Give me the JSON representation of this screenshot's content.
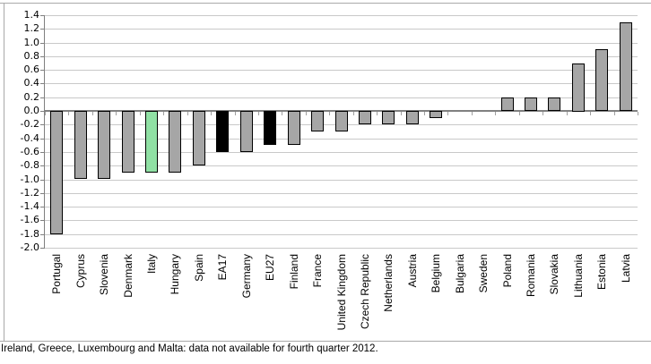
{
  "chart_data": {
    "type": "bar",
    "title": "",
    "xlabel": "",
    "ylabel": "",
    "categories": [
      "Portugal",
      "Cyprus",
      "Slovenia",
      "Denmark",
      "Italy",
      "Hungary",
      "Spain",
      "EA17",
      "Germany",
      "EU27",
      "Finland",
      "France",
      "United Kingdom",
      "Czech Republic",
      "Netherlands",
      "Austria",
      "Belgium",
      "Bulgaria",
      "Sweden",
      "Poland",
      "Romania",
      "Slovakia",
      "Lithuania",
      "Estonia",
      "Latvia"
    ],
    "values": [
      -1.8,
      -1.0,
      -1.0,
      -0.9,
      -0.9,
      -0.9,
      -0.8,
      -0.6,
      -0.6,
      -0.5,
      -0.5,
      -0.3,
      -0.3,
      -0.2,
      -0.2,
      -0.2,
      -0.1,
      0.0,
      0.0,
      0.2,
      0.2,
      0.2,
      0.7,
      0.9,
      1.3
    ],
    "bar_styles": [
      "gray",
      "gray",
      "gray",
      "gray",
      "green",
      "gray",
      "gray",
      "black",
      "gray",
      "black",
      "gray",
      "gray",
      "gray",
      "gray",
      "gray",
      "gray",
      "gray",
      "gray",
      "gray",
      "gray",
      "gray",
      "gray",
      "gray",
      "gray",
      "gray"
    ],
    "highlighted_category": "Italy",
    "black_categories": [
      "EA17",
      "EU27"
    ],
    "yticks": [
      "1.4",
      "1.2",
      "1.0",
      "0.8",
      "0.6",
      "0.4",
      "0.2",
      "0.0",
      "-0.2",
      "-0.4",
      "-0.6",
      "-0.8",
      "-1.0",
      "-1.2",
      "-1.4",
      "-1.6",
      "-1.8",
      "-2.0"
    ],
    "ylim": [
      -2.0,
      1.4
    ],
    "grid": true,
    "legend": "none"
  },
  "footnote": "Ireland, Greece, Luxembourg and Malta: data not available for fourth quarter 2012.",
  "colors": {
    "bar_gray": "#a6a6a6",
    "bar_green": "#90e0a4",
    "bar_black": "#000000",
    "bar_border": "#000000",
    "gridline": "#c9c9c9",
    "zero_line": "#808080",
    "axis": "#808080",
    "tick": "#a0a0a0",
    "frame": "#a9a9a9"
  }
}
